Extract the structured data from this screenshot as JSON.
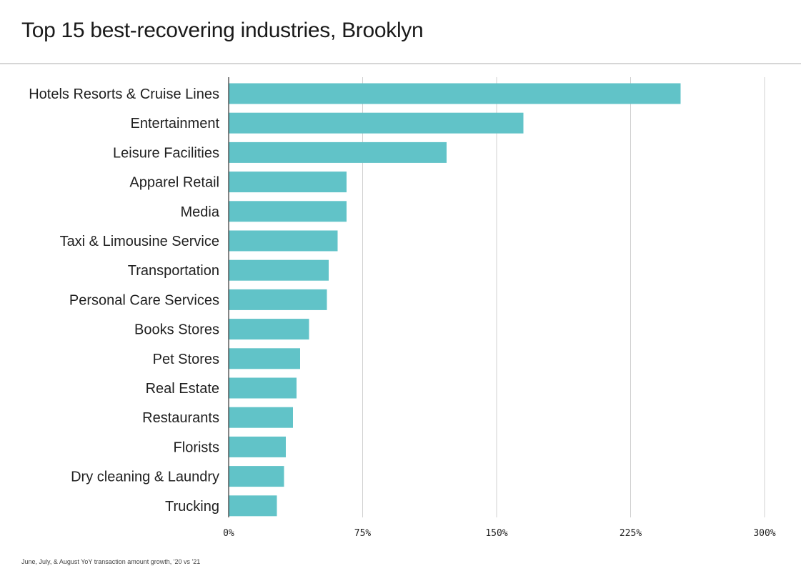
{
  "title": "Top 15 best-recovering industries, Brooklyn",
  "footnote": "June, July, & August YoY transaction amount growth, '20 vs '21",
  "colors": {
    "bar": "#61c3c8",
    "grid": "#d0d0d0",
    "axis": "#333333",
    "text": "#1f1f1f"
  },
  "chart_data": {
    "type": "bar",
    "orientation": "horizontal",
    "title": "Top 15 best-recovering industries, Brooklyn",
    "categories": [
      "Hotels Resorts & Cruise Lines",
      "Entertainment",
      "Leisure Facilities",
      "Apparel Retail",
      "Media",
      "Taxi & Limousine Service",
      "Transportation",
      "Personal Care Services",
      "Books Stores",
      "Pet Stores",
      "Real Estate",
      "Restaurants",
      "Florists",
      "Dry cleaning & Laundry",
      "Trucking"
    ],
    "values": [
      253,
      165,
      122,
      66,
      66,
      61,
      56,
      55,
      45,
      40,
      38,
      36,
      32,
      31,
      27
    ],
    "xlim": [
      0,
      300
    ],
    "xticks": [
      0,
      75,
      150,
      225,
      300
    ],
    "xtick_labels": [
      "0%",
      "75%",
      "150%",
      "225%",
      "300%"
    ],
    "grid": "vertical",
    "legend": "none"
  }
}
